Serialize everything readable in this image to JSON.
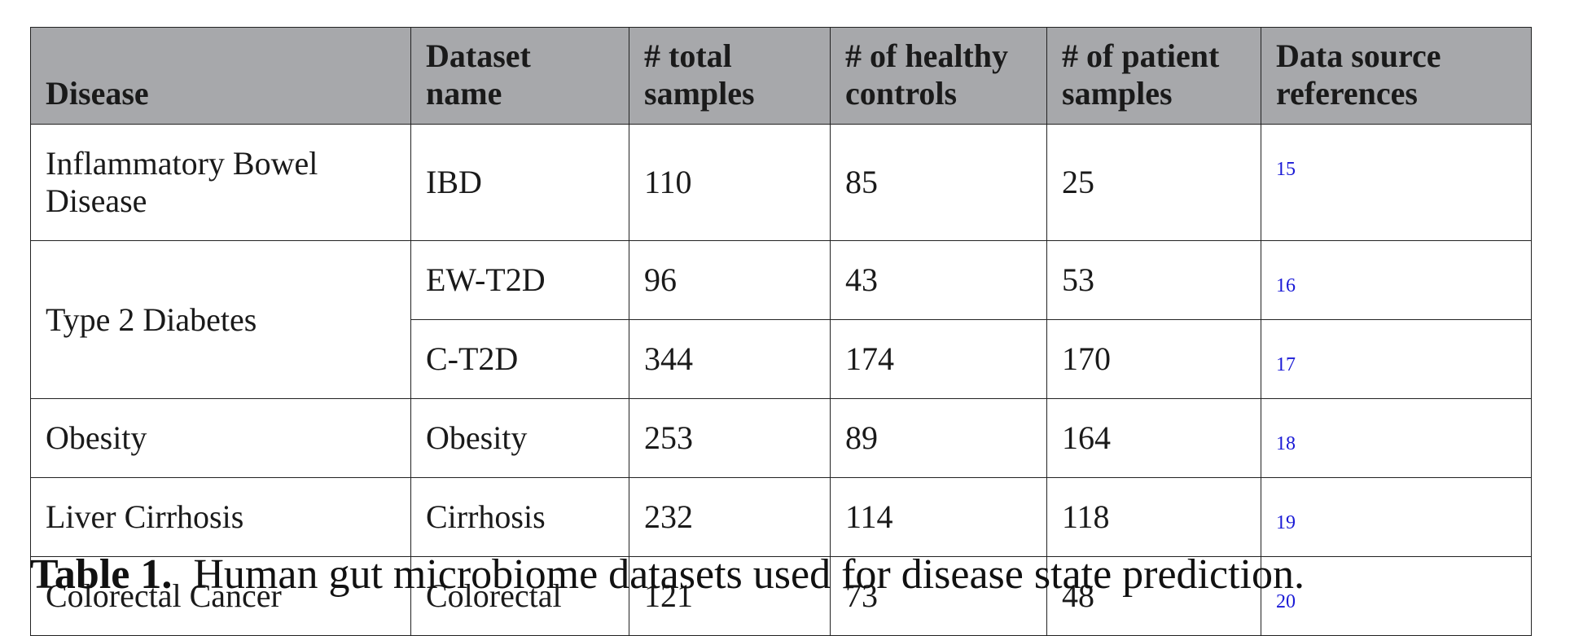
{
  "table": {
    "headers": [
      "Disease",
      "Dataset name",
      "# total samples",
      "# of healthy controls",
      "# of patient samples",
      "Data source references"
    ],
    "rows": [
      {
        "disease": "Inflammatory Bowel Disease",
        "dataset": "IBD",
        "total": "110",
        "healthy": "85",
        "patient": "25",
        "ref": "15"
      },
      {
        "disease": "Type 2 Diabetes",
        "dataset": "EW-T2D",
        "total": "96",
        "healthy": "43",
        "patient": "53",
        "ref": "16"
      },
      {
        "disease": "",
        "dataset": "C-T2D",
        "total": "344",
        "healthy": "174",
        "patient": "170",
        "ref": "17"
      },
      {
        "disease": "Obesity",
        "dataset": "Obesity",
        "total": "253",
        "healthy": "89",
        "patient": "164",
        "ref": "18"
      },
      {
        "disease": "Liver Cirrhosis",
        "dataset": "Cirrhosis",
        "total": "232",
        "healthy": "114",
        "patient": "118",
        "ref": "19"
      },
      {
        "disease": "Colorectal Cancer",
        "dataset": "Colorectal",
        "total": "121",
        "healthy": "73",
        "patient": "48",
        "ref": "20"
      }
    ]
  },
  "caption": {
    "label": "Table 1.",
    "text": "Human gut microbiome datasets used for disease state prediction."
  }
}
